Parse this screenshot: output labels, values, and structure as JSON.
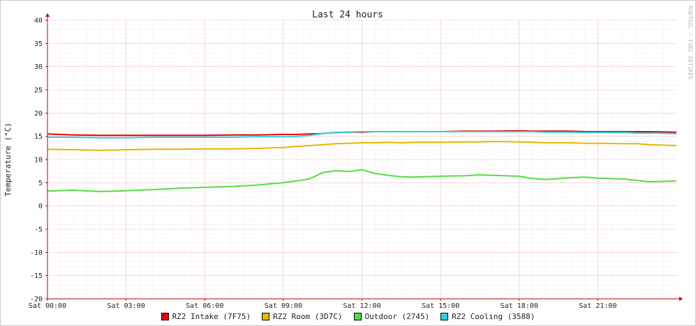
{
  "chart_data": {
    "type": "line",
    "title": "Last 24 hours",
    "ylabel": "Temperature (°C)",
    "xlabel": "",
    "watermark": "RRDTOOL / TOBI OETIKER",
    "ylim": [
      -20,
      40
    ],
    "y_ticks": [
      40,
      35,
      30,
      25,
      20,
      15,
      10,
      5,
      0,
      -5,
      -10,
      -15,
      -20
    ],
    "y_tick_labels": [
      "40",
      "35",
      "30",
      "25",
      "20",
      "15",
      "10",
      "5",
      "0",
      "-5",
      "-10",
      "-15",
      "-20"
    ],
    "x_range_hours": [
      0,
      24
    ],
    "x_ticks_hours": [
      0,
      3,
      6,
      9,
      12,
      15,
      18,
      21
    ],
    "x_tick_labels": [
      "Sat 00:00",
      "Sat 03:00",
      "Sat 06:00",
      "Sat 09:00",
      "Sat 12:00",
      "Sat 15:00",
      "Sat 18:00",
      "Sat 21:00"
    ],
    "grid": true,
    "legend_position": "bottom",
    "x": [
      0,
      1,
      2,
      3,
      4,
      5,
      6,
      7,
      8,
      9,
      9.5,
      10,
      10.5,
      11,
      11.5,
      12,
      12.5,
      13,
      13.5,
      14,
      15,
      16,
      16.5,
      17,
      18,
      18.5,
      19,
      20,
      20.5,
      21,
      22,
      22.5,
      23,
      24
    ],
    "series": [
      {
        "name": "RZ2 Intake (7F75)",
        "color": "#ee0000",
        "values": [
          15.5,
          15.3,
          15.2,
          15.2,
          15.2,
          15.2,
          15.2,
          15.3,
          15.3,
          15.4,
          15.4,
          15.5,
          15.6,
          15.8,
          15.9,
          15.9,
          16.0,
          16.0,
          16.0,
          16.0,
          16.0,
          16.1,
          16.1,
          16.1,
          16.2,
          16.1,
          16.1,
          16.1,
          16.0,
          16.0,
          16.0,
          16.0,
          16.0,
          15.9
        ]
      },
      {
        "name": "RZ2 Room (3D7C)",
        "color": "#e6b800",
        "values": [
          12.2,
          12.1,
          12.0,
          12.1,
          12.2,
          12.2,
          12.3,
          12.3,
          12.4,
          12.6,
          12.8,
          13.0,
          13.2,
          13.4,
          13.5,
          13.6,
          13.6,
          13.7,
          13.6,
          13.7,
          13.7,
          13.8,
          13.8,
          13.9,
          13.8,
          13.7,
          13.6,
          13.6,
          13.5,
          13.5,
          13.4,
          13.4,
          13.2,
          13.0
        ]
      },
      {
        "name": "Outdoor (2745)",
        "color": "#55dd44",
        "values": [
          3.2,
          3.4,
          3.1,
          3.3,
          3.5,
          3.8,
          4.0,
          4.2,
          4.5,
          5.0,
          5.4,
          5.8,
          7.2,
          7.6,
          7.4,
          7.8,
          7.0,
          6.6,
          6.3,
          6.2,
          6.4,
          6.5,
          6.7,
          6.6,
          6.4,
          5.9,
          5.7,
          6.1,
          6.2,
          6.0,
          5.8,
          5.5,
          5.2,
          5.4
        ]
      },
      {
        "name": "RZ2 Cooling (3588)",
        "color": "#33ccdd",
        "values": [
          14.8,
          14.8,
          14.7,
          14.7,
          14.8,
          14.8,
          14.8,
          14.8,
          14.9,
          14.9,
          15.0,
          15.2,
          15.6,
          15.8,
          15.9,
          16.0,
          16.0,
          16.0,
          16.0,
          16.0,
          16.0,
          16.0,
          16.0,
          16.0,
          16.0,
          16.0,
          15.9,
          15.9,
          15.8,
          15.8,
          15.8,
          15.7,
          15.7,
          15.6
        ]
      }
    ]
  }
}
